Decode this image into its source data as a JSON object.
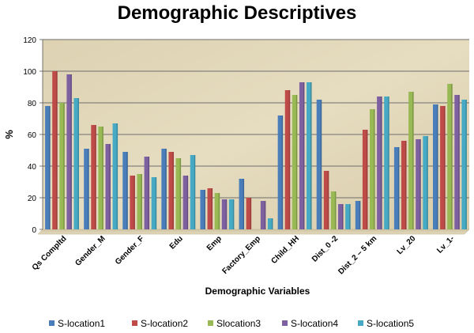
{
  "chart_data": {
    "type": "bar",
    "title": "Demographic Descriptives",
    "xlabel": "Demographic Variables",
    "ylabel": "%",
    "ylim": [
      0,
      120
    ],
    "yticks": [
      0,
      20,
      40,
      60,
      80,
      100,
      120
    ],
    "grid": true,
    "legend_position": "bottom",
    "plot_background": "parchment texture",
    "categories": [
      "Qs Compltd",
      "Gender_M",
      "Gender_F",
      "Edu",
      "Emp",
      "Factory_Emp",
      "Child_HH",
      "Dist_0 -2",
      "Dist_2 – 5 km",
      "Lv_20",
      "Lv_1-"
    ],
    "series": [
      {
        "name": "S-location1",
        "color": "#4a7ebb",
        "values": [
          78,
          51,
          49,
          51,
          25,
          32,
          72,
          82,
          18,
          52,
          79
        ]
      },
      {
        "name": "S-location2",
        "color": "#be4b48",
        "values": [
          100,
          66,
          34,
          49,
          26,
          20,
          88,
          37,
          63,
          56,
          78
        ]
      },
      {
        "name": "Slocation3",
        "color": "#98b954",
        "values": [
          80,
          65,
          35,
          45,
          23,
          0,
          85,
          24,
          76,
          87,
          92
        ]
      },
      {
        "name": "S-location4",
        "color": "#7d60a0",
        "values": [
          98,
          54,
          46,
          34,
          19,
          18,
          93,
          16,
          84,
          57,
          85
        ]
      },
      {
        "name": "S-location5",
        "color": "#46aac5",
        "values": [
          83,
          67,
          33,
          47,
          19,
          7,
          93,
          16,
          84,
          59,
          82
        ]
      }
    ]
  }
}
